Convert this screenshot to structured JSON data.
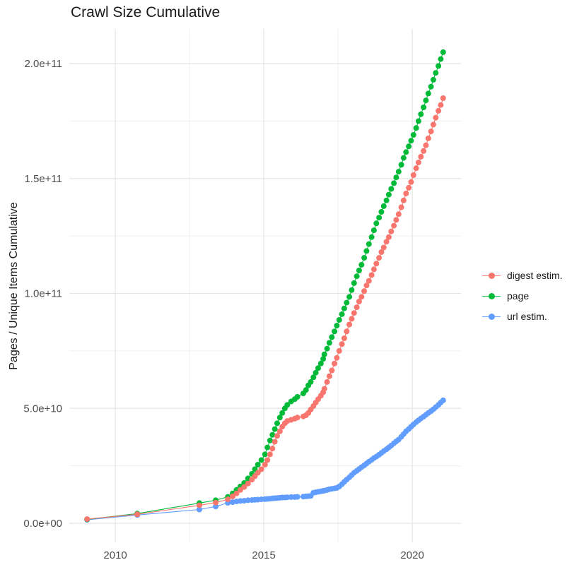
{
  "title": "Crawl Size Cumulative",
  "y_axis": {
    "title": "Pages / Unique Items Cumulative",
    "major": [
      {
        "label": "0.0e+00",
        "value": 0
      },
      {
        "label": "5.0e+10",
        "value": 50
      },
      {
        "label": "1.0e+11",
        "value": 100
      },
      {
        "label": "1.5e+11",
        "value": 150
      },
      {
        "label": "2.0e+11",
        "value": 200
      }
    ],
    "minor": [
      25,
      75,
      125,
      175
    ]
  },
  "x_axis": {
    "major": [
      {
        "label": "2010",
        "value": 2010
      },
      {
        "label": "2015",
        "value": 2015
      },
      {
        "label": "2020",
        "value": 2020
      }
    ],
    "minor": [
      2012.5,
      2017.5
    ]
  },
  "legend": {
    "items": [
      {
        "label": "digest estim.",
        "color": "#F8766D"
      },
      {
        "label": "page",
        "color": "#00BA38"
      },
      {
        "label": "url estim.",
        "color": "#619CFF"
      }
    ]
  },
  "chart_data": {
    "type": "scatter",
    "title": "Crawl Size Cumulative",
    "xlabel": "",
    "ylabel": "Pages / Unique Items Cumulative",
    "value_unit": "1e9 (billions of pages / unique items)",
    "x_domain": [
      2008.45,
      2021.64
    ],
    "y_domain_e9": [
      -8.3,
      215.1
    ],
    "grid": "on",
    "legend_position": "right",
    "series": [
      {
        "name": "url estim.",
        "color": "#619CFF",
        "points": [
          [
            2009.05,
            1.5
          ],
          [
            2010.74,
            3.6
          ],
          [
            2012.83,
            6
          ],
          [
            2013.38,
            7.3
          ],
          [
            2013.79,
            8.9
          ],
          [
            2013.95,
            9.2
          ],
          [
            2014.08,
            9.5
          ],
          [
            2014.21,
            9.7
          ],
          [
            2014.34,
            9.8
          ],
          [
            2014.47,
            10
          ],
          [
            2014.6,
            10.1
          ],
          [
            2014.7,
            10.2
          ],
          [
            2014.8,
            10.3
          ],
          [
            2014.92,
            10.4
          ],
          [
            2015.04,
            10.5
          ],
          [
            2015.12,
            10.6
          ],
          [
            2015.21,
            10.7
          ],
          [
            2015.29,
            10.8
          ],
          [
            2015.37,
            10.9
          ],
          [
            2015.45,
            11
          ],
          [
            2015.54,
            11.1
          ],
          [
            2015.62,
            11.2
          ],
          [
            2015.71,
            11.2
          ],
          [
            2015.79,
            11.3
          ],
          [
            2015.92,
            11.4
          ],
          [
            2016.04,
            11.4
          ],
          [
            2016.13,
            11.5
          ],
          [
            2016.33,
            11.6
          ],
          [
            2016.42,
            11.7
          ],
          [
            2016.5,
            11.8
          ],
          [
            2016.58,
            11.9
          ],
          [
            2016.67,
            13.3
          ],
          [
            2016.75,
            13.5
          ],
          [
            2016.83,
            13.7
          ],
          [
            2016.92,
            13.9
          ],
          [
            2017,
            14.1
          ],
          [
            2017.04,
            14.2
          ],
          [
            2017.13,
            14.5
          ],
          [
            2017.21,
            14.8
          ],
          [
            2017.29,
            15
          ],
          [
            2017.38,
            15.2
          ],
          [
            2017.46,
            15.4
          ],
          [
            2017.54,
            16
          ],
          [
            2017.63,
            17
          ],
          [
            2017.71,
            18
          ],
          [
            2017.79,
            19
          ],
          [
            2017.88,
            20
          ],
          [
            2017.96,
            21
          ],
          [
            2018.04,
            22
          ],
          [
            2018.13,
            22.8
          ],
          [
            2018.21,
            23.6
          ],
          [
            2018.29,
            24.4
          ],
          [
            2018.38,
            25.2
          ],
          [
            2018.46,
            26
          ],
          [
            2018.54,
            26.8
          ],
          [
            2018.63,
            27.6
          ],
          [
            2018.71,
            28.4
          ],
          [
            2018.79,
            29
          ],
          [
            2018.88,
            29.8
          ],
          [
            2018.96,
            30.6
          ],
          [
            2019.04,
            31.4
          ],
          [
            2019.13,
            32.2
          ],
          [
            2019.21,
            33
          ],
          [
            2019.29,
            33.8
          ],
          [
            2019.38,
            34.8
          ],
          [
            2019.46,
            35.6
          ],
          [
            2019.54,
            36.4
          ],
          [
            2019.63,
            37.6
          ],
          [
            2019.71,
            38.8
          ],
          [
            2019.79,
            40
          ],
          [
            2019.88,
            41
          ],
          [
            2019.96,
            42
          ],
          [
            2020.04,
            43
          ],
          [
            2020.13,
            44
          ],
          [
            2020.21,
            44.8
          ],
          [
            2020.29,
            45.6
          ],
          [
            2020.38,
            46.4
          ],
          [
            2020.46,
            47.2
          ],
          [
            2020.54,
            48
          ],
          [
            2020.63,
            48.8
          ],
          [
            2020.71,
            49.6
          ],
          [
            2020.79,
            50.5
          ],
          [
            2020.88,
            51.5
          ],
          [
            2020.96,
            52.5
          ],
          [
            2021.04,
            53.5
          ]
        ]
      },
      {
        "name": "page",
        "color": "#00BA38",
        "points": [
          [
            2009.05,
            1.7
          ],
          [
            2010.74,
            4.2
          ],
          [
            2012.83,
            8.8
          ],
          [
            2013.38,
            10
          ],
          [
            2013.79,
            11.5
          ],
          [
            2013.95,
            13
          ],
          [
            2014.08,
            14.5
          ],
          [
            2014.21,
            16
          ],
          [
            2014.34,
            17.5
          ],
          [
            2014.47,
            19.5
          ],
          [
            2014.6,
            21.5
          ],
          [
            2014.7,
            23.5
          ],
          [
            2014.8,
            25.5
          ],
          [
            2014.92,
            27.5
          ],
          [
            2015.04,
            30
          ],
          [
            2015.12,
            33
          ],
          [
            2015.21,
            36
          ],
          [
            2015.29,
            38.5
          ],
          [
            2015.37,
            41
          ],
          [
            2015.45,
            43.5
          ],
          [
            2015.54,
            46
          ],
          [
            2015.62,
            48
          ],
          [
            2015.71,
            50
          ],
          [
            2015.79,
            51.5
          ],
          [
            2015.92,
            53
          ],
          [
            2016.04,
            54
          ],
          [
            2016.13,
            55
          ],
          [
            2016.33,
            56.5
          ],
          [
            2016.42,
            58
          ],
          [
            2016.5,
            60
          ],
          [
            2016.58,
            61.5
          ],
          [
            2016.67,
            63.5
          ],
          [
            2016.75,
            65.5
          ],
          [
            2016.83,
            67.5
          ],
          [
            2016.92,
            69.5
          ],
          [
            2017,
            71.5
          ],
          [
            2017.04,
            73.5
          ],
          [
            2017.13,
            76
          ],
          [
            2017.21,
            78.5
          ],
          [
            2017.29,
            81
          ],
          [
            2017.38,
            83.5
          ],
          [
            2017.46,
            86
          ],
          [
            2017.54,
            88.5
          ],
          [
            2017.63,
            91
          ],
          [
            2017.71,
            93.5
          ],
          [
            2017.79,
            96
          ],
          [
            2017.88,
            98.5
          ],
          [
            2017.96,
            101.5
          ],
          [
            2018.04,
            104.5
          ],
          [
            2018.13,
            107.5
          ],
          [
            2018.21,
            110
          ],
          [
            2018.29,
            112.5
          ],
          [
            2018.38,
            115.5
          ],
          [
            2018.46,
            118.5
          ],
          [
            2018.54,
            121.5
          ],
          [
            2018.63,
            124.5
          ],
          [
            2018.71,
            127.5
          ],
          [
            2018.79,
            130.5
          ],
          [
            2018.88,
            133
          ],
          [
            2018.96,
            135.5
          ],
          [
            2019.04,
            138
          ],
          [
            2019.13,
            140.5
          ],
          [
            2019.21,
            143
          ],
          [
            2019.29,
            145.5
          ],
          [
            2019.38,
            148
          ],
          [
            2019.46,
            150.5
          ],
          [
            2019.54,
            153
          ],
          [
            2019.63,
            156
          ],
          [
            2019.71,
            159
          ],
          [
            2019.79,
            161.5
          ],
          [
            2019.88,
            164
          ],
          [
            2019.96,
            166.5
          ],
          [
            2020.04,
            169
          ],
          [
            2020.13,
            172
          ],
          [
            2020.21,
            175
          ],
          [
            2020.29,
            178
          ],
          [
            2020.38,
            181
          ],
          [
            2020.46,
            184
          ],
          [
            2020.54,
            187
          ],
          [
            2020.63,
            190
          ],
          [
            2020.71,
            193
          ],
          [
            2020.79,
            196
          ],
          [
            2020.88,
            199
          ],
          [
            2020.96,
            202
          ],
          [
            2021.04,
            205
          ]
        ]
      },
      {
        "name": "digest estim.",
        "color": "#F8766D",
        "points": [
          [
            2009.05,
            1.8
          ],
          [
            2010.74,
            3.9
          ],
          [
            2012.83,
            7.8
          ],
          [
            2013.38,
            9
          ],
          [
            2013.79,
            10.4
          ],
          [
            2013.95,
            11.7
          ],
          [
            2014.08,
            13
          ],
          [
            2014.21,
            14.5
          ],
          [
            2014.34,
            15.8
          ],
          [
            2014.47,
            17.3
          ],
          [
            2014.6,
            19
          ],
          [
            2014.7,
            20.5
          ],
          [
            2014.8,
            22
          ],
          [
            2014.92,
            23.5
          ],
          [
            2015.04,
            25.5
          ],
          [
            2015.12,
            27.5
          ],
          [
            2015.21,
            30
          ],
          [
            2015.29,
            32.5
          ],
          [
            2015.37,
            35.5
          ],
          [
            2015.45,
            38
          ],
          [
            2015.54,
            40
          ],
          [
            2015.62,
            42
          ],
          [
            2015.71,
            43.5
          ],
          [
            2015.79,
            44.5
          ],
          [
            2015.92,
            45
          ],
          [
            2016.04,
            45.5
          ],
          [
            2016.13,
            46
          ],
          [
            2016.33,
            46.5
          ],
          [
            2016.42,
            47
          ],
          [
            2016.5,
            48
          ],
          [
            2016.58,
            49.5
          ],
          [
            2016.67,
            51
          ],
          [
            2016.75,
            52.5
          ],
          [
            2016.83,
            54
          ],
          [
            2016.92,
            55.5
          ],
          [
            2017,
            57
          ],
          [
            2017.04,
            58.5
          ],
          [
            2017.13,
            61.5
          ],
          [
            2017.21,
            64
          ],
          [
            2017.29,
            66.5
          ],
          [
            2017.38,
            69.5
          ],
          [
            2017.46,
            72
          ],
          [
            2017.54,
            75
          ],
          [
            2017.63,
            78
          ],
          [
            2017.71,
            80.5
          ],
          [
            2017.79,
            83.5
          ],
          [
            2017.88,
            86.5
          ],
          [
            2017.96,
            89
          ],
          [
            2018.04,
            91.5
          ],
          [
            2018.13,
            94
          ],
          [
            2018.21,
            96.5
          ],
          [
            2018.29,
            98.5
          ],
          [
            2018.38,
            101
          ],
          [
            2018.46,
            103.5
          ],
          [
            2018.54,
            105.5
          ],
          [
            2018.63,
            108
          ],
          [
            2018.71,
            110.5
          ],
          [
            2018.79,
            113
          ],
          [
            2018.88,
            115.5
          ],
          [
            2018.96,
            118
          ],
          [
            2019.04,
            120
          ],
          [
            2019.13,
            122.5
          ],
          [
            2019.21,
            124.5
          ],
          [
            2019.29,
            127
          ],
          [
            2019.38,
            129.5
          ],
          [
            2019.46,
            132
          ],
          [
            2019.54,
            134.5
          ],
          [
            2019.63,
            137.5
          ],
          [
            2019.71,
            140.5
          ],
          [
            2019.79,
            143.5
          ],
          [
            2019.88,
            146
          ],
          [
            2019.96,
            148.5
          ],
          [
            2020.04,
            151.5
          ],
          [
            2020.13,
            154.5
          ],
          [
            2020.21,
            157
          ],
          [
            2020.29,
            159.5
          ],
          [
            2020.38,
            162
          ],
          [
            2020.46,
            164.5
          ],
          [
            2020.54,
            167.5
          ],
          [
            2020.63,
            170.5
          ],
          [
            2020.71,
            173.5
          ],
          [
            2020.79,
            176.5
          ],
          [
            2020.88,
            179.5
          ],
          [
            2020.96,
            182
          ],
          [
            2021.04,
            185
          ]
        ]
      }
    ],
    "style": {
      "background": "#ffffff",
      "major_grid_color": "#e4e4e4",
      "minor_grid_color": "#efefef",
      "tick_text_color": "#4d4d4d",
      "point_radius": 4
    }
  }
}
